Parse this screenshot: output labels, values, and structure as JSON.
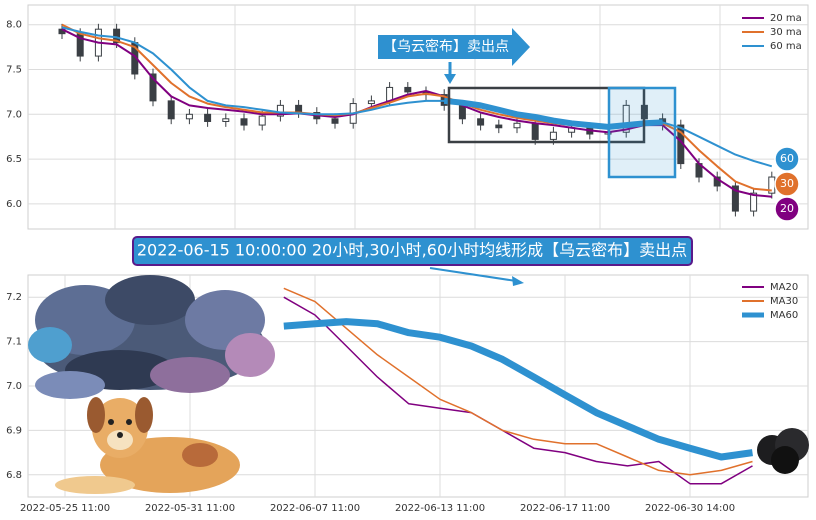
{
  "chart_data": [
    {
      "type": "candlestick",
      "annotations": [
        "【乌云密布】卖出点"
      ],
      "end_labels": [
        "60",
        "30",
        "20"
      ],
      "ylim": [
        5.72,
        8.22
      ],
      "yticks": [
        {
          "value": 6.0,
          "label": "6.0"
        },
        6.5,
        {
          "value": 7.0,
          "label": "7.0"
        },
        7.5,
        {
          "value": 8.0,
          "label": "8.0"
        }
      ],
      "grid": true,
      "legend": "upper right",
      "candle_color": "#3a3f44",
      "open": [
        7.95,
        7.9,
        7.65,
        7.95,
        7.8,
        7.45,
        7.15,
        6.95,
        7.0,
        6.92,
        6.95,
        6.88,
        6.98,
        7.1,
        7.02,
        6.95,
        6.9,
        7.12,
        7.15,
        7.3,
        7.25,
        7.22,
        7.1,
        6.95,
        6.88,
        6.85,
        6.9,
        6.72,
        6.8,
        6.85,
        6.78,
        6.8,
        7.1,
        6.95,
        6.88,
        6.45,
        6.3,
        6.2,
        5.92,
        6.12
      ],
      "high": [
        8.01,
        7.96,
        8.01,
        8.01,
        7.86,
        7.51,
        7.21,
        7.06,
        7.06,
        7.01,
        7.01,
        7.04,
        7.16,
        7.16,
        7.08,
        7.01,
        7.18,
        7.21,
        7.36,
        7.36,
        7.31,
        7.28,
        7.16,
        7.01,
        6.94,
        6.96,
        6.96,
        6.86,
        6.91,
        6.91,
        6.86,
        7.16,
        7.16,
        7.01,
        6.94,
        6.51,
        6.36,
        6.26,
        6.18,
        6.36
      ],
      "low": [
        7.84,
        7.59,
        7.59,
        7.74,
        7.39,
        7.09,
        6.89,
        6.89,
        6.86,
        6.86,
        6.82,
        6.82,
        6.92,
        6.96,
        6.89,
        6.84,
        6.84,
        7.06,
        7.09,
        7.19,
        7.16,
        7.04,
        6.89,
        6.82,
        6.79,
        6.79,
        6.66,
        6.66,
        6.74,
        6.72,
        6.72,
        6.74,
        6.89,
        6.82,
        6.39,
        6.24,
        6.14,
        5.86,
        5.86,
        6.06
      ],
      "close": [
        7.9,
        7.65,
        7.95,
        7.8,
        7.45,
        7.15,
        6.95,
        7.0,
        6.92,
        6.95,
        6.88,
        6.98,
        7.1,
        7.02,
        6.95,
        6.9,
        7.12,
        7.15,
        7.3,
        7.25,
        7.22,
        7.1,
        6.95,
        6.88,
        6.85,
        6.9,
        6.72,
        6.8,
        6.85,
        6.78,
        6.8,
        7.1,
        6.95,
        6.88,
        6.45,
        6.3,
        6.2,
        5.92,
        6.12,
        6.3
      ],
      "series": [
        {
          "name": "20 ma",
          "color": "#800080",
          "values": [
            7.95,
            7.85,
            7.8,
            7.78,
            7.65,
            7.4,
            7.2,
            7.1,
            7.07,
            7.05,
            7.03,
            7.0,
            7.0,
            7.01,
            6.99,
            6.97,
            7.0,
            7.08,
            7.15,
            7.22,
            7.26,
            7.2,
            7.1,
            7.02,
            6.97,
            6.93,
            6.9,
            6.88,
            6.85,
            6.82,
            6.8,
            6.83,
            6.88,
            6.88,
            6.7,
            6.45,
            6.28,
            6.15,
            6.1,
            6.08
          ]
        },
        {
          "name": "30 ma",
          "color": "#e0712c",
          "values": [
            8.0,
            7.9,
            7.85,
            7.82,
            7.75,
            7.55,
            7.35,
            7.2,
            7.12,
            7.08,
            7.05,
            7.02,
            7.02,
            7.02,
            7.0,
            6.99,
            7.01,
            7.07,
            7.13,
            7.2,
            7.23,
            7.2,
            7.12,
            7.05,
            7.0,
            6.96,
            6.93,
            6.9,
            6.88,
            6.86,
            6.84,
            6.86,
            6.89,
            6.9,
            6.8,
            6.6,
            6.42,
            6.25,
            6.17,
            6.15
          ]
        },
        {
          "name": "60 ma",
          "color": "#2e91d0",
          "values": [
            7.97,
            7.92,
            7.88,
            7.86,
            7.8,
            7.68,
            7.5,
            7.3,
            7.15,
            7.1,
            7.08,
            7.05,
            7.02,
            7.01,
            7.0,
            7.0,
            7.01,
            7.05,
            7.1,
            7.13,
            7.15,
            7.15,
            7.13,
            7.1,
            7.05,
            7.0,
            6.97,
            6.93,
            6.9,
            6.88,
            6.86,
            6.88,
            6.9,
            6.91,
            6.85,
            6.75,
            6.65,
            6.55,
            6.48,
            6.42
          ]
        }
      ]
    },
    {
      "type": "line",
      "annotations": [
        "2022-06-15 10:00:00 20小时,30小时,60小时均线形成【乌云密布】卖出点"
      ],
      "categories": [
        "2022-05-25 11:00",
        null,
        null,
        null,
        "2022-05-31 11:00",
        null,
        null,
        null,
        "2022-06-07 11:00",
        null,
        null,
        null,
        "2022-06-13 11:00",
        null,
        null,
        null,
        "2022-06-17 11:00",
        null,
        null,
        null,
        "2022-06-30 14:00",
        null,
        null,
        null
      ],
      "ylim": [
        6.75,
        7.25
      ],
      "yticks": [
        6.8,
        6.9,
        {
          "value": 7.0,
          "label": "7.0"
        },
        7.1,
        7.2
      ],
      "grid": true,
      "legend": "upper right",
      "series": [
        {
          "name": "MA20",
          "color": "#800080",
          "values": [
            null,
            null,
            null,
            null,
            null,
            null,
            null,
            7.2,
            7.16,
            7.09,
            7.02,
            6.96,
            6.95,
            6.94,
            6.9,
            6.86,
            6.85,
            6.83,
            6.82,
            6.83,
            6.78,
            6.78,
            6.82,
            null
          ]
        },
        {
          "name": "MA30",
          "color": "#e0712c",
          "values": [
            null,
            null,
            null,
            null,
            null,
            null,
            null,
            7.22,
            7.19,
            7.13,
            7.07,
            7.02,
            6.97,
            6.94,
            6.9,
            6.88,
            6.87,
            6.87,
            6.84,
            6.81,
            6.8,
            6.81,
            6.83,
            null
          ]
        },
        {
          "name": "MA60",
          "color": "#2e91d0",
          "values": [
            null,
            null,
            null,
            null,
            null,
            null,
            null,
            7.135,
            7.14,
            7.145,
            7.14,
            7.12,
            7.11,
            7.09,
            7.06,
            7.02,
            6.98,
            6.94,
            6.91,
            6.88,
            6.86,
            6.84,
            6.85,
            null
          ]
        }
      ]
    }
  ]
}
